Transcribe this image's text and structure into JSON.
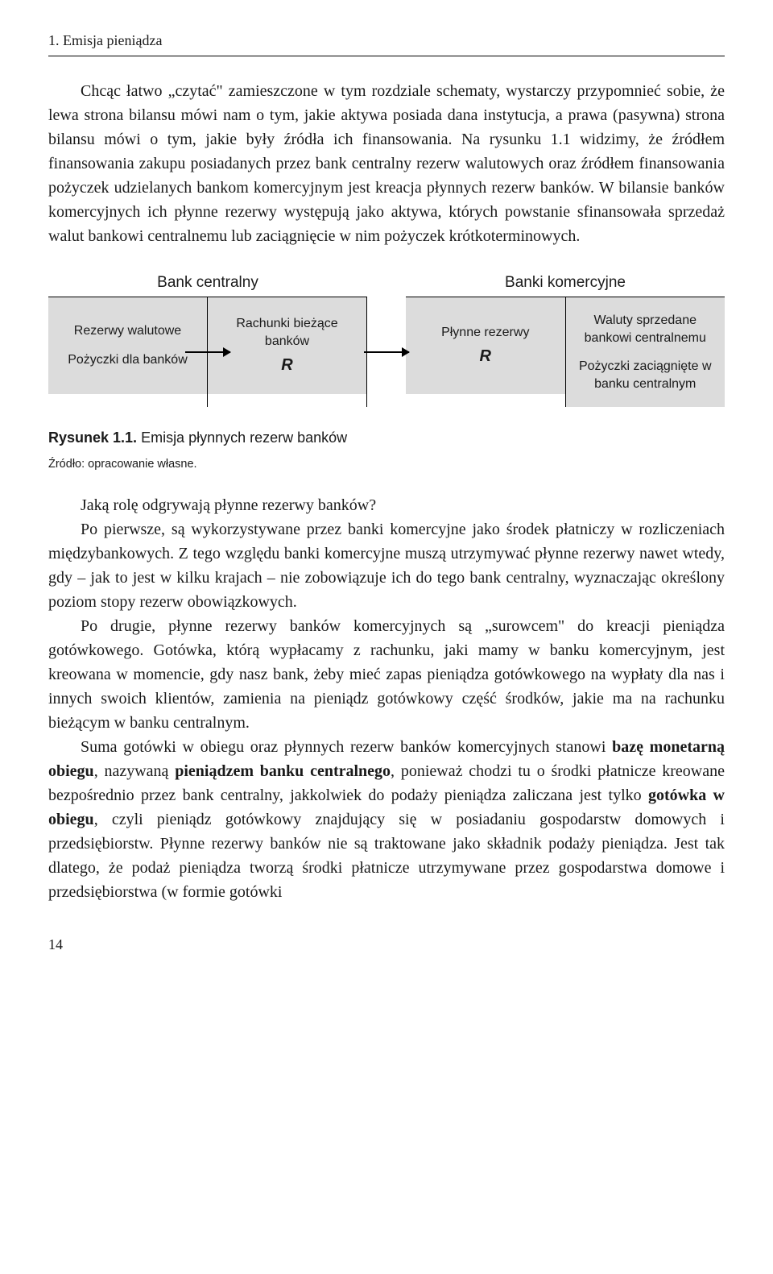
{
  "header": "1. Emisja pieniądza",
  "para1": "Chcąc łatwo „czytać\" zamieszczone w tym rozdziale schematy, wystarczy przypomnieć sobie, że lewa strona bilansu mówi nam o tym, jakie aktywa posiada dana instytucja, a prawa (pasywna) strona bilansu mówi o tym, jakie były źródła ich finansowania. Na rysunku 1.1 widzimy, że źródłem finansowania zakupu posiadanych przez bank centralny rezerw walutowych oraz źródłem finansowania pożyczek udzielanych bankom komercyjnym jest kreacja płynnych rezerw banków. W bilansie banków komercyjnych ich płynne rezerwy występują jako aktywa, których powstanie sfinansowała sprzedaż walut bankowi centralnemu lub zaciągnięcie w nim pożyczek krótkoterminowych.",
  "diagram": {
    "central_bank_header": "Bank centralny",
    "commercial_banks_header": "Banki komercyjne",
    "central_left_line1": "Rezerwy walutowe",
    "central_left_line2": "Pożyczki dla banków",
    "central_right_line1": "Rachunki bieżące banków",
    "central_right_r": "R",
    "comm_left_line1": "Płynne rezerwy",
    "comm_left_r": "R",
    "comm_right_line1": "Waluty sprzedane bankowi centralnemu",
    "comm_right_line2": "Pożyczki zaciągnięte w banku centralnym",
    "box_bg": "#dcdcdc",
    "border_color": "#000000"
  },
  "fig_caption_bold": "Rysunek 1.1.",
  "fig_caption_rest": " Emisja płynnych rezerw banków",
  "fig_source": "Źródło: opracowanie własne.",
  "para2": "Jaką rolę odgrywają płynne rezerwy banków?",
  "para3": "Po pierwsze, są wykorzystywane przez banki komercyjne jako środek płatniczy w rozliczeniach międzybankowych. Z tego względu banki komercyjne muszą utrzymywać płynne rezerwy nawet wtedy, gdy – jak to jest w kilku krajach – nie zobowiązuje ich do tego bank centralny, wyznaczając określony poziom stopy rezerw obowiązkowych.",
  "para4": "Po drugie, płynne rezerwy banków komercyjnych są „surowcem\" do kreacji pieniądza gotówkowego. Gotówka, którą wypłacamy z rachunku, jaki mamy w banku komercyjnym, jest kreowana w momencie, gdy nasz bank, żeby mieć zapas pieniądza gotówkowego na wypłaty dla nas i innych swoich klientów, zamienia na pieniądz gotówkowy część środków, jakie ma na rachunku bieżącym w banku centralnym.",
  "para5_pre": "Suma gotówki w obiegu oraz płynnych rezerw banków komercyjnych stanowi ",
  "para5_b1": "bazę monetarną obiegu",
  "para5_mid1": ", nazywaną ",
  "para5_b2": "pieniądzem banku centralnego",
  "para5_mid2": ", ponieważ chodzi tu o środki płatnicze kreowane bezpośrednio przez bank centralny, jakkolwiek do podaży pieniądza zaliczana jest tylko ",
  "para5_b3": "gotówka w obiegu",
  "para5_end": ", czyli pieniądz gotówkowy znajdujący się w posiadaniu gospodarstw domowych i przedsiębiorstw. Płynne rezerwy banków nie są traktowane jako składnik podaży pieniądza. Jest tak dlatego, że podaż pieniądza tworzą środki płatnicze utrzymywane przez gospodarstwa domowe i przedsiębiorstwa (w formie gotówki",
  "page_num": "14"
}
